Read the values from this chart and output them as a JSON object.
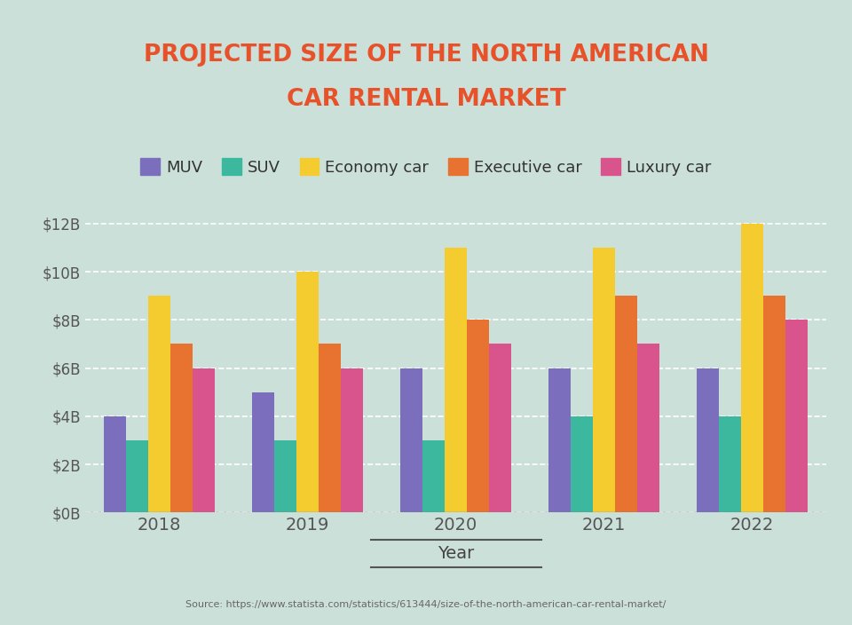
{
  "title_line1": "PROJECTED SIZE OF THE NORTH AMERICAN",
  "title_line2": "CAR RENTAL MARKET",
  "title_color": "#E8522A",
  "background_color": "#cce0da",
  "plot_bg_color": "#cce0da",
  "years": [
    2018,
    2019,
    2020,
    2021,
    2022
  ],
  "categories": [
    "MUV",
    "SUV",
    "Economy car",
    "Executive car",
    "Luxury car"
  ],
  "colors": [
    "#7B6FBD",
    "#3BB89E",
    "#F5CC30",
    "#E87230",
    "#D9538C"
  ],
  "values": {
    "MUV": [
      4.0,
      5.0,
      6.0,
      6.0,
      6.0
    ],
    "SUV": [
      3.0,
      3.0,
      3.0,
      4.0,
      4.0
    ],
    "Economy car": [
      9.0,
      10.0,
      11.0,
      11.0,
      12.0
    ],
    "Executive car": [
      7.0,
      7.0,
      8.0,
      9.0,
      9.0
    ],
    "Luxury car": [
      6.0,
      6.0,
      7.0,
      7.0,
      8.0
    ]
  },
  "ylabel_ticks": [
    0,
    2,
    4,
    6,
    8,
    10,
    12
  ],
  "ylabel_labels": [
    "$0B",
    "$2B",
    "$4B",
    "$6B",
    "$8B",
    "$10B",
    "$12B"
  ],
  "xlabel": "Year",
  "source_text": "Source: https://www.statista.com/statistics/613444/size-of-the-north-american-car-rental-market/",
  "bar_width": 0.15,
  "ylim": [
    0,
    13.5
  ],
  "grid_color": "white",
  "tick_color": "#555555",
  "axis_label_color": "#444444"
}
